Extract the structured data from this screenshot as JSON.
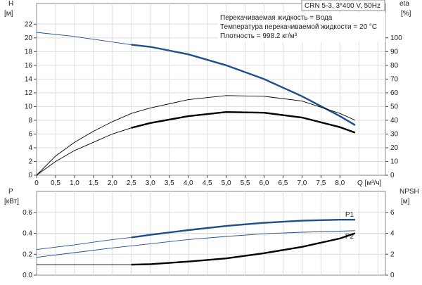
{
  "chart_data": [
    {
      "type": "line",
      "model": "CRN 5-3, 3*400 V, 50Hz",
      "info": [
        "Перекачиваемая жидкость = Вода",
        "Температура перекачиваемой жидкости = 20 °C",
        "Плотность = 998.2 кг/м³"
      ],
      "xlabel": "Q [м³/ч]",
      "ylabel": [
        "H",
        "[м]"
      ],
      "y2label": [
        "eta",
        "[%]"
      ],
      "xlim": [
        0,
        9.2
      ],
      "ylim": [
        0,
        25
      ],
      "y2lim": [
        0,
        125
      ],
      "grid": true,
      "xticks": [
        "0",
        "0,5",
        "1,0",
        "1,5",
        "2,0",
        "2,5",
        "3,0",
        "3,5",
        "4,0",
        "4,5",
        "5,0",
        "5,5",
        "6,0",
        "6,5",
        "7,0",
        "7,5",
        "8,0"
      ],
      "yticks": [
        0,
        2,
        4,
        6,
        8,
        10,
        12,
        14,
        16,
        18,
        20,
        22
      ],
      "y2ticks": [
        0,
        10,
        20,
        30,
        40,
        50,
        60,
        70,
        80,
        90,
        100
      ],
      "series": [
        {
          "axis": "H",
          "color": "#1f4e8c",
          "x": [
            0,
            1,
            2,
            2.5,
            3,
            4,
            5,
            6,
            7,
            8,
            8.4
          ],
          "values": [
            20.8,
            20.2,
            19.4,
            19.0,
            18.7,
            17.6,
            16.0,
            14.0,
            11.5,
            8.6,
            7.3
          ],
          "thick_from": 2.5
        },
        {
          "axis": "eta",
          "color": "#000000",
          "x": [
            0,
            0.5,
            1,
            1.5,
            2,
            2.5,
            3,
            4,
            5,
            6,
            7,
            8,
            8.4
          ],
          "values": [
            0,
            14,
            24,
            32,
            39,
            45,
            49,
            55,
            58,
            57.5,
            54,
            45,
            40
          ],
          "thick_from": 99
        },
        {
          "axis": "eta",
          "color": "#000000",
          "x": [
            0,
            0.5,
            1,
            1.5,
            2,
            2.5,
            3,
            4,
            5,
            6,
            7,
            8,
            8.4
          ],
          "values": [
            0,
            10,
            18,
            24,
            30,
            34.5,
            38,
            43,
            46,
            45.5,
            42,
            35,
            31
          ],
          "thick_from": 2.5
        }
      ]
    },
    {
      "type": "line",
      "xlim": [
        0,
        9.2
      ],
      "ylabel": [
        "P",
        "[кВт]"
      ],
      "y2label": [
        "NPSH",
        "[м]"
      ],
      "ylim": [
        0,
        0.8
      ],
      "y2lim": [
        0,
        8
      ],
      "grid": true,
      "yticks": [
        "0.0",
        "0.2",
        "0.4",
        "0.6"
      ],
      "y2ticks": [
        "0",
        "2",
        "4",
        "6"
      ],
      "series": [
        {
          "name": "P1",
          "axis": "P",
          "color": "#1f4e8c",
          "x": [
            0,
            1,
            2,
            2.5,
            3,
            4,
            5,
            6,
            6.5,
            7,
            8,
            8.4
          ],
          "values": [
            0.245,
            0.29,
            0.34,
            0.36,
            0.385,
            0.43,
            0.47,
            0.5,
            0.51,
            0.52,
            0.53,
            0.53
          ],
          "thick_from": 2.5
        },
        {
          "name": "P2",
          "axis": "P",
          "color": "#1f4e8c",
          "x": [
            0,
            1,
            2,
            2.5,
            3,
            4,
            5,
            6,
            7,
            8,
            8.4
          ],
          "values": [
            0.17,
            0.215,
            0.26,
            0.28,
            0.3,
            0.34,
            0.37,
            0.395,
            0.41,
            0.42,
            0.425
          ],
          "thick_from": 99
        },
        {
          "axis": "NPSH",
          "color": "#000000",
          "x": [
            0,
            2.5,
            3,
            4,
            5,
            6,
            7,
            8,
            8.4
          ],
          "values": [
            1.0,
            1.0,
            1.05,
            1.3,
            1.6,
            2.1,
            2.7,
            3.5,
            4.0
          ],
          "thick_from": 2.5
        }
      ]
    }
  ]
}
